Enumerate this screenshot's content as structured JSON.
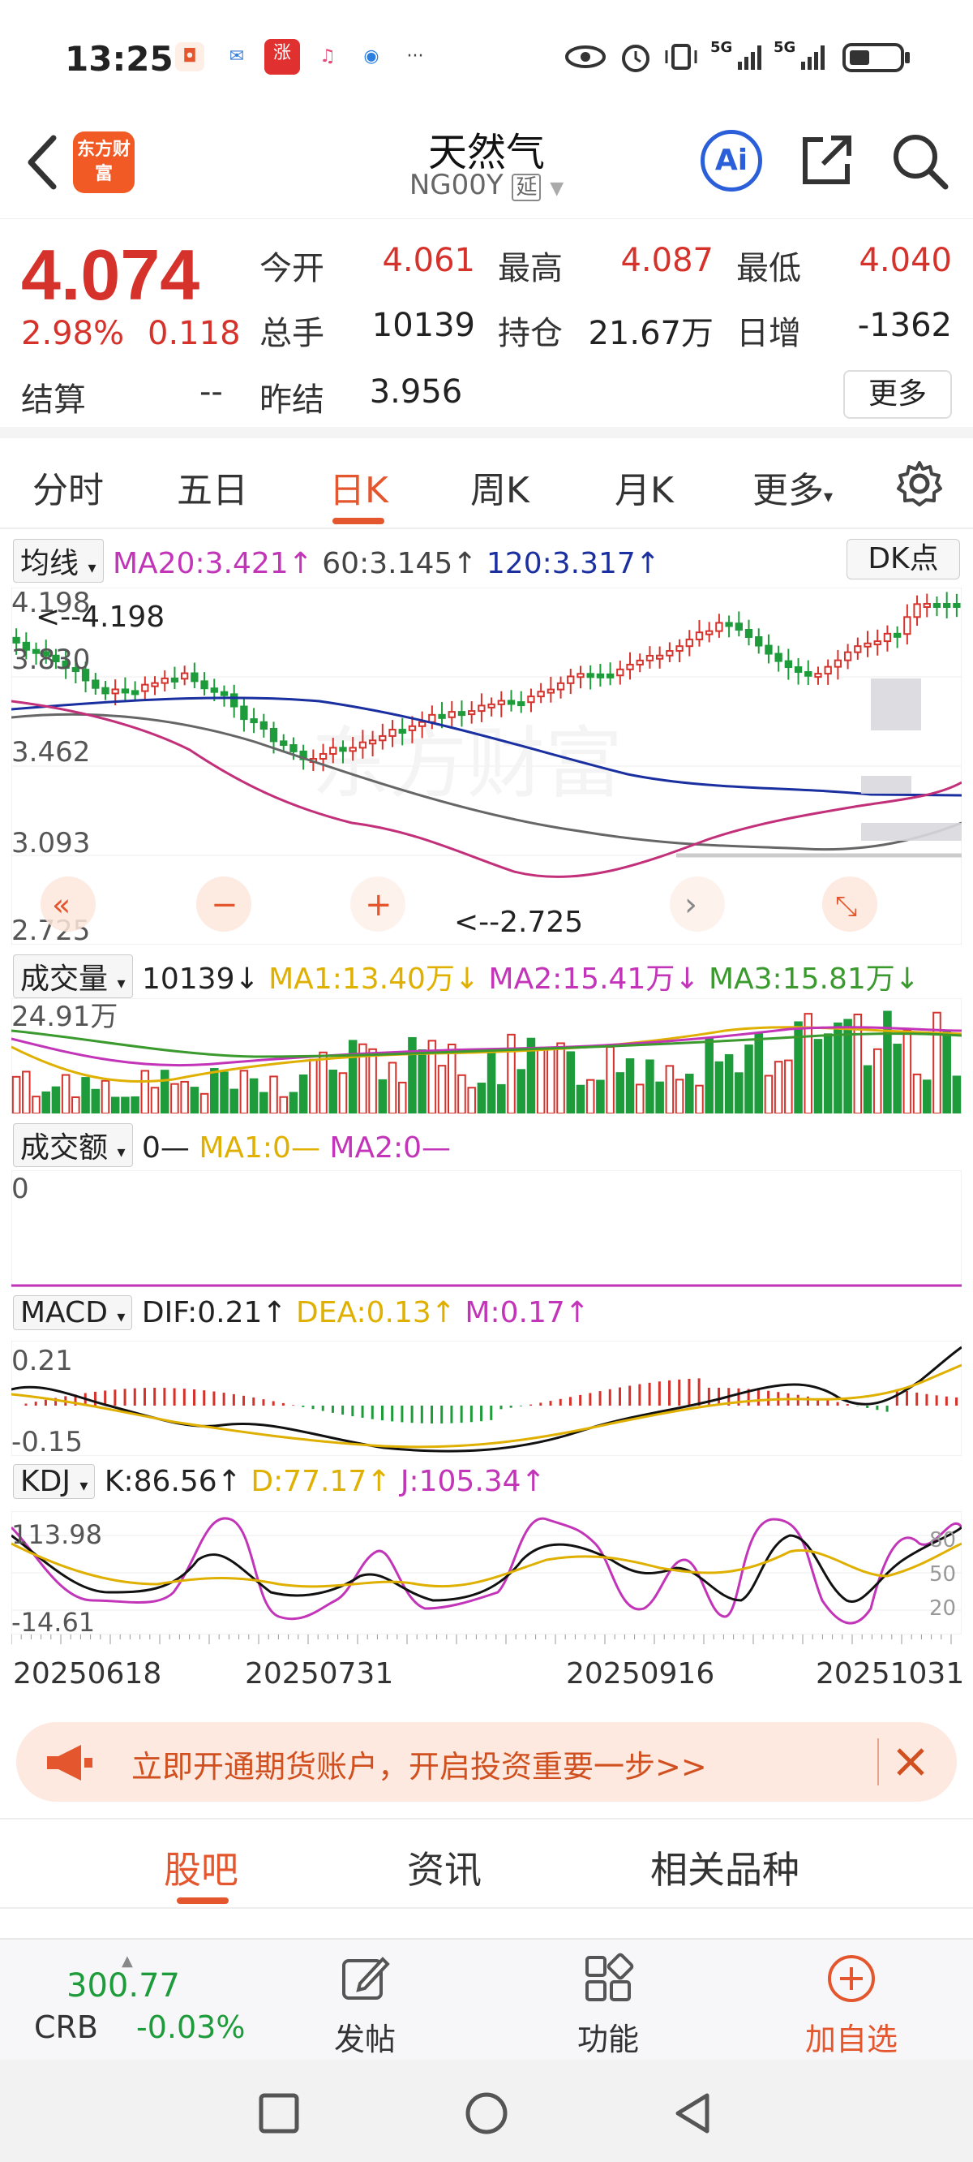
{
  "status": {
    "time": "13:25",
    "signal_1": "5G",
    "signal_2": "5G"
  },
  "header": {
    "brand": "东方财富",
    "title": "天然气",
    "code": "NG00Y",
    "delay_badge": "延",
    "ai_label": "Ai"
  },
  "quote": {
    "price": "4.074",
    "change_pct": "2.98%",
    "change": "0.118",
    "settle_label": "结算",
    "settle_value": "--",
    "open_label": "今开",
    "open_value": "4.061",
    "high_label": "最高",
    "high_value": "4.087",
    "low_label": "最低",
    "low_value": "4.040",
    "volume_label": "总手",
    "volume_value": "10139",
    "oi_label": "持仓",
    "oi_value": "21.67万",
    "daily_inc_label": "日增",
    "daily_inc_value": "-1362",
    "prev_settle_label": "昨结",
    "prev_settle_value": "3.956",
    "more_label": "更多"
  },
  "chart_tabs": [
    "分时",
    "五日",
    "日K",
    "周K",
    "月K",
    "更多"
  ],
  "active_chart_tab": "日K",
  "ma_row": {
    "selector": "均线",
    "ma20": "MA20:3.421",
    "ma60": "60:3.145",
    "ma120": "120:3.317",
    "dk_label": "DK点"
  },
  "kline": {
    "y_labels": [
      "4.198",
      "3.830",
      "3.462",
      "3.093",
      "2.725"
    ],
    "max_marker": "<--4.198",
    "min_marker": "<--2.725"
  },
  "volume_row": {
    "selector": "成交量",
    "value": "10139",
    "ma1": "MA1:13.40万",
    "ma2": "MA2:15.41万",
    "ma3": "MA3:15.81万",
    "y_max": "24.91万"
  },
  "amount_row": {
    "selector": "成交额",
    "value": "0—",
    "ma1": "MA1:0—",
    "ma2": "MA2:0—",
    "y_label": "0"
  },
  "macd_row": {
    "selector": "MACD",
    "dif": "DIF:0.21",
    "dea": "DEA:0.13",
    "m": "M:0.17",
    "y_top": "0.21",
    "y_bottom": "-0.15"
  },
  "kdj_row": {
    "selector": "KDJ",
    "k": "K:86.56",
    "d": "D:77.17",
    "j": "J:105.34",
    "y_top": "113.98",
    "y_bottom": "-14.61",
    "right_80": "80",
    "right_50": "50",
    "right_20": "20"
  },
  "x_dates": [
    "20250618",
    "20250731",
    "20250916",
    "20251031"
  ],
  "chart_data": {
    "type": "candlestick",
    "ylim": [
      2.725,
      4.198
    ],
    "series": [
      {
        "name": "MA20",
        "last": 3.421
      },
      {
        "name": "60",
        "last": 3.145
      },
      {
        "name": "120",
        "last": 3.317
      }
    ],
    "colors": {
      "up": "#d6322c",
      "down": "#1e9b3a",
      "ma20": "#c2307a",
      "ma60": "#666666",
      "ma120": "#1a2fa0"
    }
  },
  "promo": {
    "text": "立即开通期货账户，开启投资重要一步>>"
  },
  "lower_tabs": [
    "股吧",
    "资讯",
    "相关品种"
  ],
  "active_lower_tab": "股吧",
  "toolbar": {
    "crb_value": "300.77",
    "crb_label": "CRB",
    "crb_change": "-0.03%",
    "post_label": "发帖",
    "func_label": "功能",
    "add_label": "加自选"
  }
}
